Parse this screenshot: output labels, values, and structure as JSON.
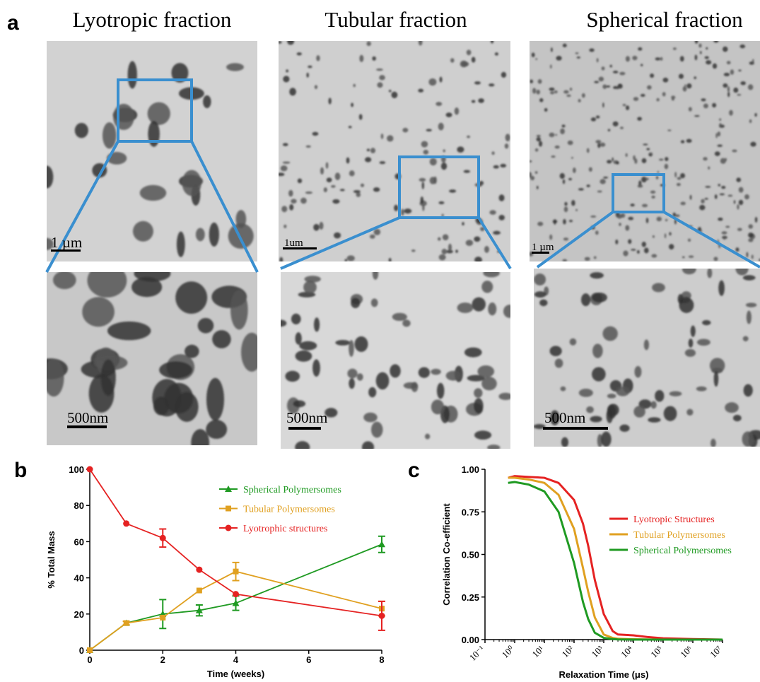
{
  "panel_a": {
    "label": "a",
    "columns": [
      {
        "title": "Lyotropic fraction",
        "scale_top": "1 µm",
        "scale_bottom": "500nm"
      },
      {
        "title": "Tubular fraction",
        "scale_top": "1um",
        "scale_bottom": "500nm"
      },
      {
        "title": "Spherical fraction",
        "scale_top": "1 µm",
        "scale_bottom": "500nm"
      }
    ]
  },
  "chart_data": [
    {
      "type": "line",
      "panel_label": "b",
      "x_label": "Time (weeks)",
      "y_label": "% Total Mass",
      "x": [
        0,
        1,
        2,
        3,
        4,
        8
      ],
      "xlim": [
        0,
        8
      ],
      "xticks": [
        0,
        2,
        4,
        6,
        8
      ],
      "ylim": [
        0,
        100
      ],
      "yticks": [
        0,
        20,
        40,
        60,
        80,
        100
      ],
      "legend": "upper right",
      "series": [
        {
          "name": "Spherical Polymersomes",
          "color": "#1f9a22",
          "marker": "triangle",
          "values": [
            0,
            15,
            20,
            22,
            26,
            58.5
          ],
          "errors": [
            null,
            null,
            8,
            3,
            4,
            4.5
          ]
        },
        {
          "name": "Tubular Polymersomes",
          "color": "#e0a020",
          "marker": "square",
          "values": [
            0,
            15,
            18,
            33,
            43.5,
            23
          ],
          "errors": [
            null,
            1,
            null,
            null,
            5,
            4
          ]
        },
        {
          "name": "Lyotrophic structures",
          "color": "#e52222",
          "marker": "circle",
          "values": [
            100,
            70,
            62,
            44.5,
            31,
            19
          ],
          "errors": [
            null,
            null,
            5,
            null,
            null,
            8
          ]
        }
      ]
    },
    {
      "type": "line",
      "panel_label": "c",
      "x_label": "Relaxation Time (μs)",
      "y_label": "Correlation Co-efficient",
      "xscale": "log",
      "legend": "center right",
      "x": [
        0.6,
        1,
        3,
        10,
        30,
        100,
        200,
        300,
        500,
        1000,
        2000,
        3000,
        10000,
        30000,
        100000,
        1000000,
        10000000
      ],
      "xlim": [
        0.1,
        10000000
      ],
      "xticks": [
        {
          "value": 0.1,
          "label": "10⁻¹"
        },
        {
          "value": 1,
          "label": "10⁰"
        },
        {
          "value": 10,
          "label": "10¹"
        },
        {
          "value": 100,
          "label": "10²"
        },
        {
          "value": 1000,
          "label": "10³"
        },
        {
          "value": 10000,
          "label": "10⁴"
        },
        {
          "value": 100000,
          "label": "10⁵"
        },
        {
          "value": 1000000,
          "label": "10⁶"
        },
        {
          "value": 10000000,
          "label": "10⁷"
        }
      ],
      "ylim": [
        0,
        1
      ],
      "yticks": [
        {
          "value": 0,
          "label": "0.00"
        },
        {
          "value": 0.25,
          "label": "0.25"
        },
        {
          "value": 0.5,
          "label": "0.50"
        },
        {
          "value": 0.75,
          "label": "0.75"
        },
        {
          "value": 1,
          "label": "1.00"
        }
      ],
      "series": [
        {
          "name": "Lyotropic Structures",
          "color": "#e52222",
          "values": [
            0.95,
            0.96,
            0.955,
            0.95,
            0.92,
            0.82,
            0.68,
            0.55,
            0.35,
            0.15,
            0.05,
            0.03,
            0.025,
            0.015,
            0.008,
            0.003,
            0
          ]
        },
        {
          "name": "Tubular Polymersomes",
          "color": "#e0a020",
          "values": [
            0.95,
            0.95,
            0.94,
            0.92,
            0.85,
            0.65,
            0.42,
            0.28,
            0.13,
            0.03,
            0.01,
            0.005,
            0.002,
            0.001,
            0,
            0,
            0
          ]
        },
        {
          "name": "Spherical Polymersomes",
          "color": "#1f9a22",
          "values": [
            0.92,
            0.925,
            0.91,
            0.87,
            0.75,
            0.45,
            0.22,
            0.12,
            0.04,
            0.01,
            0.003,
            0.001,
            0,
            0,
            0,
            0,
            0
          ]
        }
      ]
    }
  ]
}
